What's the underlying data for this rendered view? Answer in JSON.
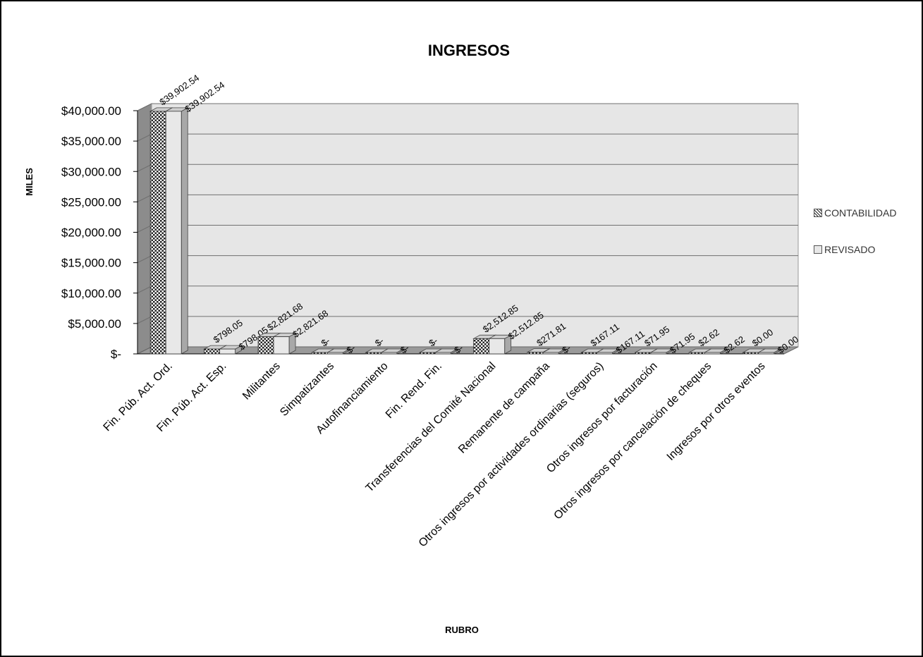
{
  "chart_data": {
    "type": "bar",
    "title": "INGRESOS",
    "xlabel": "RUBRO",
    "ylabel": "MILES",
    "ylim": [
      0,
      40000
    ],
    "y_ticks": [
      "$-",
      "$5,000.00",
      "$10,000.00",
      "$15,000.00",
      "$20,000.00",
      "$25,000.00",
      "$30,000.00",
      "$35,000.00",
      "$40,000.00"
    ],
    "grid": true,
    "legend_position": "right",
    "categories": [
      "Fin. Púb. Act. Ord.",
      "Fin. Púb. Act. Esp.",
      "Militantes",
      "Simpatizantes",
      "Autofinanciamiento",
      "Fin. Rend. Fin.",
      "Transferencias del Comité Nacional",
      "Remanente de campaña",
      "Otros ingresos por actividades ordinarias (seguros)",
      "Otros ingresos por facturación",
      "Otros ingresos por cancelación de cheques",
      "Ingresos por otros eventos"
    ],
    "series": [
      {
        "name": "CONTABILIDAD",
        "values": [
          39902.54,
          798.05,
          2821.68,
          0,
          0,
          0,
          2512.85,
          271.81,
          167.11,
          71.95,
          2.62,
          0.0
        ],
        "labels": [
          "$39,902.54",
          "$798.05",
          "$2,821.68",
          "$-",
          "$-",
          "$-",
          "$2,512.85",
          "$271.81",
          "$167.11",
          "$71.95",
          "$2.62",
          "$0.00"
        ]
      },
      {
        "name": "REVISADO",
        "values": [
          39902.54,
          798.05,
          2821.68,
          0,
          0,
          0,
          2512.85,
          0,
          167.11,
          71.95,
          2.62,
          0.0
        ],
        "labels": [
          "$39,902.54",
          "$798.05",
          "$2,821.68",
          "$-",
          "$-",
          "$-",
          "$2,512.85",
          "$-",
          "$167.11",
          "$71.95",
          "$2.62",
          "$0.00"
        ]
      }
    ],
    "colors": {
      "wall": "#e6e6e6",
      "side_wall": "#8c8c8c",
      "floor": "#9a9a9a",
      "bar_front": "#e8e8e8",
      "bar_top": "#cfcfcf",
      "bar_side": "#a8a8a8",
      "gridline": "#707070",
      "text": "#000000"
    }
  }
}
